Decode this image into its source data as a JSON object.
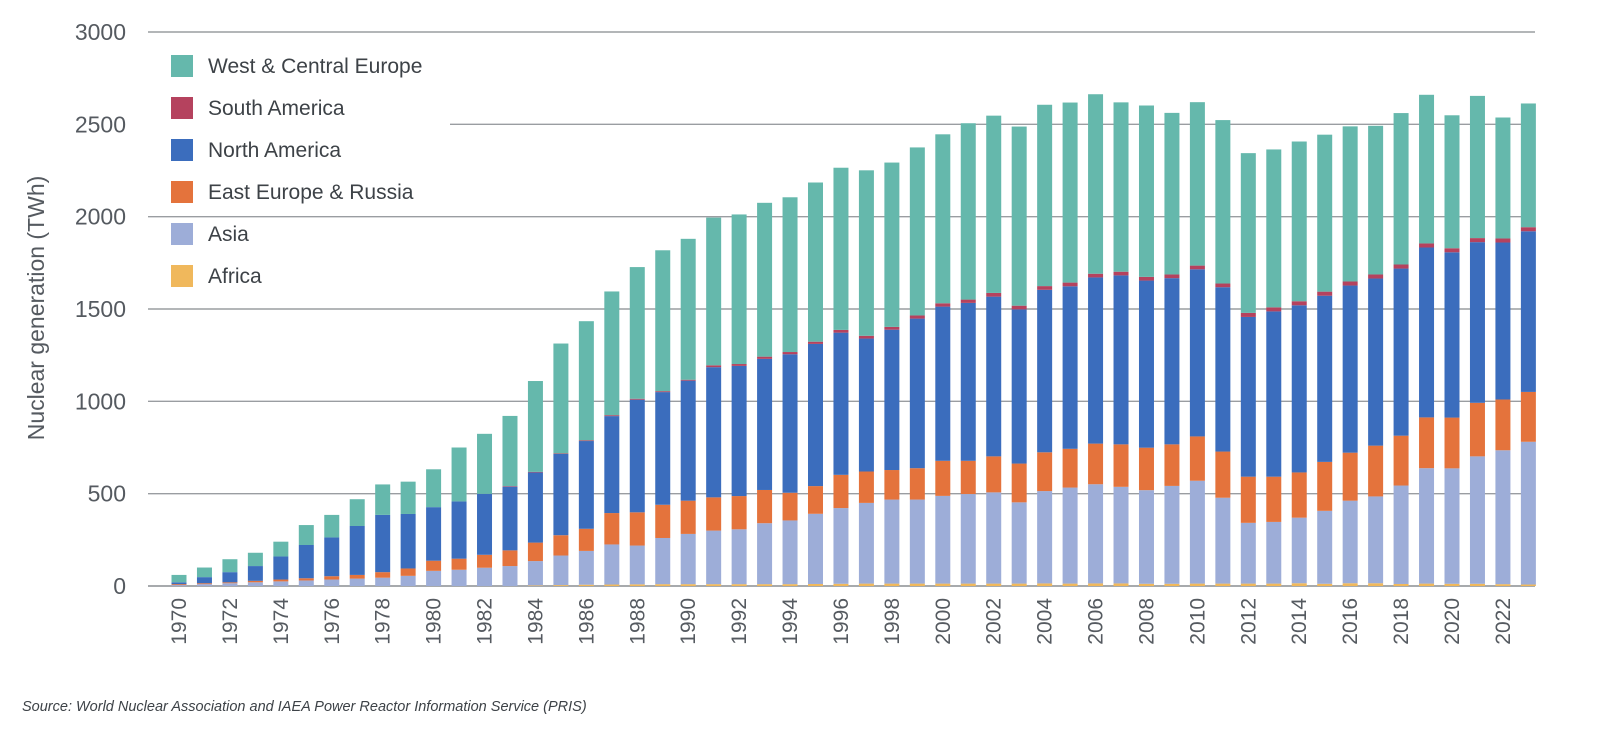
{
  "chart_data": {
    "type": "bar",
    "stacked": true,
    "ylabel": "Nuclear generation (TWh)",
    "xlabel": "",
    "ylim": [
      0,
      3000
    ],
    "yticks": [
      0,
      500,
      1000,
      1500,
      2000,
      2500,
      3000
    ],
    "grid": true,
    "legend_position": "top-left",
    "x": [
      1970,
      1971,
      1972,
      1973,
      1974,
      1975,
      1976,
      1977,
      1978,
      1979,
      1980,
      1981,
      1982,
      1983,
      1984,
      1985,
      1986,
      1987,
      1988,
      1989,
      1990,
      1991,
      1992,
      1993,
      1994,
      1995,
      1996,
      1997,
      1998,
      1999,
      2000,
      2001,
      2002,
      2003,
      2004,
      2005,
      2006,
      2007,
      2008,
      2009,
      2010,
      2011,
      2012,
      2013,
      2014,
      2015,
      2016,
      2017,
      2018,
      2019,
      2020,
      2021,
      2022,
      2023
    ],
    "x_tick_labels": [
      "1970",
      "1972",
      "1974",
      "1976",
      "1978",
      "1980",
      "1982",
      "1984",
      "1986",
      "1988",
      "1990",
      "1992",
      "1994",
      "1996",
      "1998",
      "2000",
      "2002",
      "2004",
      "2006",
      "2008",
      "2010",
      "2012",
      "2014",
      "2016",
      "2018",
      "2020",
      "2022"
    ],
    "series": [
      {
        "name": "Africa",
        "color": "#f0b85c",
        "values": [
          0,
          0,
          0,
          0,
          0,
          0,
          0,
          0,
          0,
          0,
          0,
          0,
          0,
          0,
          3,
          5,
          7,
          8,
          9,
          10,
          10,
          10,
          10,
          10,
          10,
          11,
          12,
          13,
          13,
          13,
          13,
          13,
          13,
          13,
          14,
          13,
          14,
          14,
          12,
          12,
          13,
          13,
          13,
          13,
          15,
          12,
          15,
          15,
          11,
          13,
          12,
          12,
          10,
          8
        ]
      },
      {
        "name": "Asia",
        "color": "#9dadd8",
        "values": [
          5,
          10,
          15,
          20,
          25,
          30,
          35,
          40,
          45,
          55,
          82,
          88,
          99,
          108,
          132,
          160,
          183,
          217,
          210,
          250,
          272,
          290,
          297,
          330,
          345,
          380,
          410,
          437,
          455,
          455,
          475,
          485,
          494,
          440,
          500,
          520,
          537,
          523,
          507,
          530,
          557,
          465,
          329,
          334,
          355,
          395,
          447,
          470,
          533,
          625,
          625,
          690,
          725,
          773
        ]
      },
      {
        "name": "East Europe & Russia",
        "color": "#e4733c",
        "values": [
          5,
          5,
          5,
          8,
          10,
          12,
          18,
          20,
          30,
          40,
          55,
          60,
          70,
          85,
          100,
          110,
          120,
          170,
          180,
          180,
          180,
          180,
          180,
          180,
          150,
          150,
          180,
          170,
          160,
          170,
          190,
          180,
          195,
          210,
          210,
          210,
          220,
          230,
          230,
          225,
          240,
          250,
          250,
          245,
          245,
          265,
          260,
          275,
          270,
          275,
          275,
          290,
          275,
          270
        ]
      },
      {
        "name": "North America",
        "color": "#3b6dbd",
        "values": [
          10,
          33,
          55,
          80,
          125,
          180,
          210,
          265,
          310,
          295,
          290,
          310,
          330,
          345,
          380,
          440,
          475,
          525,
          610,
          610,
          650,
          705,
          705,
          710,
          750,
          770,
          770,
          720,
          760,
          810,
          835,
          855,
          865,
          835,
          880,
          880,
          900,
          915,
          905,
          900,
          905,
          890,
          865,
          895,
          905,
          900,
          905,
          905,
          905,
          920,
          895,
          870,
          850,
          870
        ]
      },
      {
        "name": "South America",
        "color": "#b5425e",
        "values": [
          0,
          0,
          0,
          0,
          0,
          0,
          0,
          0,
          0,
          0,
          0,
          0,
          0,
          3,
          3,
          3,
          4,
          5,
          5,
          5,
          5,
          10,
          10,
          12,
          12,
          12,
          15,
          15,
          15,
          17,
          18,
          18,
          20,
          20,
          20,
          20,
          20,
          20,
          20,
          20,
          20,
          20,
          22,
          22,
          22,
          22,
          22,
          22,
          22,
          22,
          22,
          22,
          22,
          22
        ]
      },
      {
        "name": "West & Central Europe",
        "color": "#65b8ac",
        "values": [
          40,
          52,
          70,
          72,
          80,
          108,
          122,
          145,
          165,
          175,
          205,
          292,
          325,
          380,
          492,
          595,
          645,
          670,
          713,
          763,
          763,
          800,
          810,
          833,
          838,
          862,
          878,
          896,
          890,
          910,
          915,
          955,
          960,
          970,
          982,
          975,
          972,
          917,
          928,
          875,
          885,
          885,
          865,
          855,
          865,
          850,
          840,
          805,
          820,
          805,
          720,
          770,
          655,
          670
        ]
      }
    ]
  },
  "source_text": "Source: World Nuclear Association and IAEA Power Reactor Information Service (PRIS)"
}
